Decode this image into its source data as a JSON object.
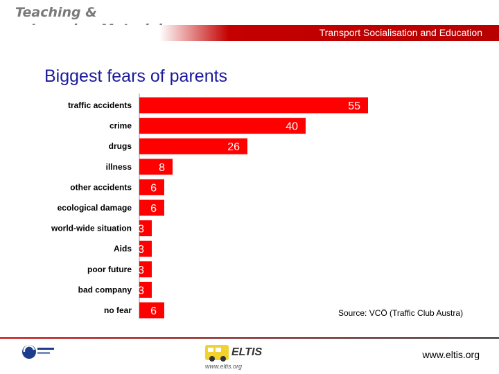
{
  "header": {
    "title_line1": "Teaching &",
    "title_line2": "Learning Materials",
    "subtitle": "Transport Socialisation and Education"
  },
  "slide": {
    "title": "Biggest fears of parents"
  },
  "chart_data": {
    "type": "bar",
    "orientation": "horizontal",
    "title": "Biggest fears of parents",
    "categories": [
      "traffic accidents",
      "crime",
      "drugs",
      "illness",
      "other accidents",
      "ecological damage",
      "world-wide situation",
      "Aids",
      "poor future",
      "bad company",
      "no fear"
    ],
    "values": [
      55,
      40,
      26,
      8,
      6,
      6,
      3,
      3,
      3,
      3,
      6
    ],
    "xlim": [
      0,
      55
    ],
    "bar_color": "#ff0000",
    "value_label_color": "#ffffff",
    "grid": false
  },
  "source": "Source: VCÖ (Traffic Club Austra)",
  "footer": {
    "url": "www.eltis.org",
    "eltis_name": "ELTIS",
    "eltis_url": "www.eltis.org"
  },
  "colors": {
    "title_blue": "#1a1a9a",
    "header_red": "#c40000",
    "header_grey": "#7a7a7a"
  }
}
